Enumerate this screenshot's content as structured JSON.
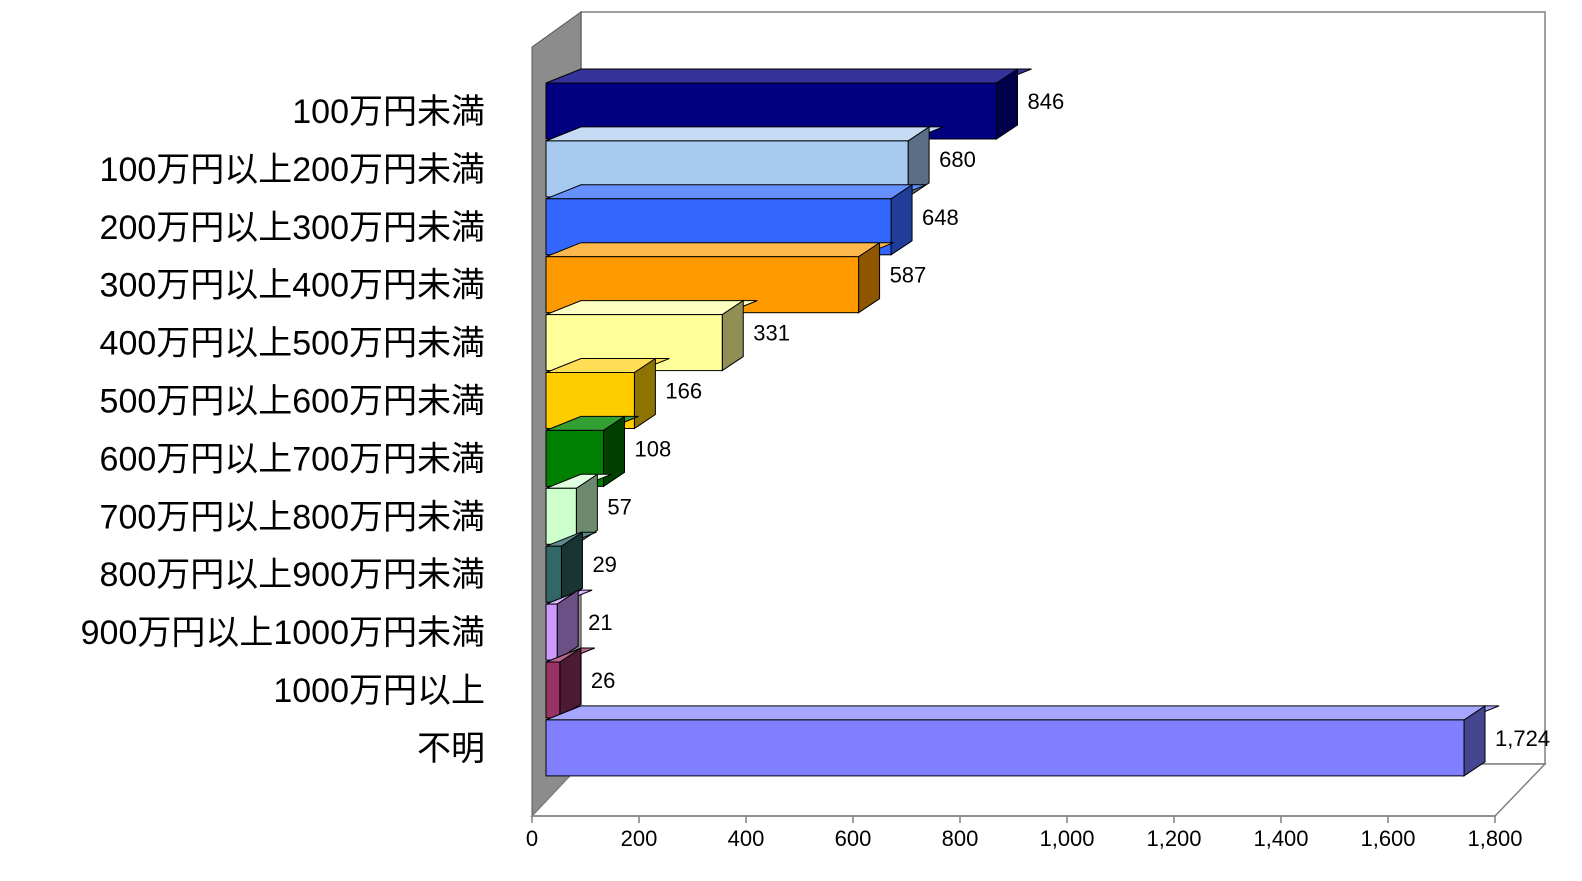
{
  "chart_data": {
    "type": "bar",
    "orientation": "horizontal",
    "three_d": true,
    "categories": [
      "100万円未満",
      "100万円以上200万円未満",
      "200万円以上300万円未満",
      "300万円以上400万円未満",
      "400万円以上500万円未満",
      "500万円以上600万円未満",
      "600万円以上700万円未満",
      "700万円以上800万円未満",
      "800万円以上900万円未満",
      "900万円以上1000万円未満",
      "1000万円以上",
      "不明"
    ],
    "values": [
      846,
      680,
      648,
      587,
      331,
      166,
      108,
      57,
      29,
      21,
      26,
      1724
    ],
    "value_labels": [
      "846",
      "680",
      "648",
      "587",
      "331",
      "166",
      "108",
      "57",
      "29",
      "21",
      "26",
      "1,724"
    ],
    "colors": [
      {
        "front": "#000080",
        "side": "#00004d",
        "top": "#333399"
      },
      {
        "front": "#a6caf0",
        "side": "#5a6f85",
        "top": "#c6dcf5"
      },
      {
        "front": "#3366ff",
        "side": "#1f3d99",
        "top": "#6690ff"
      },
      {
        "front": "#ff9900",
        "side": "#8f5600",
        "top": "#ffb84d"
      },
      {
        "front": "#ffff99",
        "side": "#8f8f56",
        "top": "#ffffc2"
      },
      {
        "front": "#ffcc00",
        "side": "#8f7300",
        "top": "#ffdd55"
      },
      {
        "front": "#008000",
        "side": "#004000",
        "top": "#33a033"
      },
      {
        "front": "#ccffcc",
        "side": "#6e8a6e",
        "top": "#e0ffe0"
      },
      {
        "front": "#336666",
        "side": "#1a3333",
        "top": "#5c8a8a"
      },
      {
        "front": "#cc99ff",
        "side": "#6b4f85",
        "top": "#ddb8ff"
      },
      {
        "front": "#993366",
        "side": "#4d1a33",
        "top": "#b86690"
      },
      {
        "front": "#8080ff",
        "side": "#464690",
        "top": "#a6a6ff"
      }
    ],
    "x_ticks": [
      "0",
      "200",
      "400",
      "600",
      "800",
      "1,000",
      "1,200",
      "1,400",
      "1,600",
      "1,800"
    ],
    "xlim": [
      0,
      1800
    ],
    "grid": false,
    "legend": "none",
    "title": "",
    "xlabel": "",
    "ylabel": ""
  }
}
